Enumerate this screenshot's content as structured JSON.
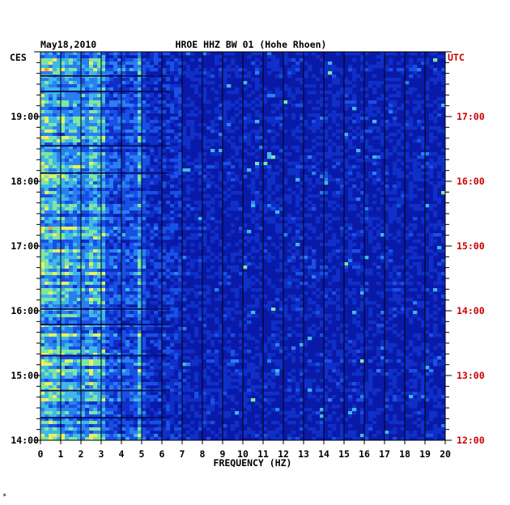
{
  "chart_data": {
    "type": "heatmap",
    "title_left": "May18,2010",
    "title": "HROE HHZ BW 01 (Hohe Rhoen)",
    "left_zone": "CES",
    "right_zone": "UTC",
    "xlabel": "FREQUENCY (HZ)",
    "xlim": [
      0,
      20
    ],
    "x_ticks": [
      "0",
      "1",
      "2",
      "3",
      "4",
      "5",
      "6",
      "7",
      "8",
      "9",
      "10",
      "11",
      "12",
      "13",
      "14",
      "15",
      "16",
      "17",
      "18",
      "19",
      "20"
    ],
    "left_ticks": [
      "14:00",
      "15:00",
      "16:00",
      "17:00",
      "18:00",
      "19:00"
    ],
    "right_ticks": [
      "12:00",
      "13:00",
      "14:00",
      "15:00",
      "16:00",
      "17:00"
    ],
    "ylim_hours_local": [
      14.0,
      20.0
    ],
    "colors": {
      "background": "#0a1aa8",
      "axis_text": "#000000",
      "utc_text": "#cc0000",
      "grid": "#000000"
    },
    "footnote": "*"
  }
}
